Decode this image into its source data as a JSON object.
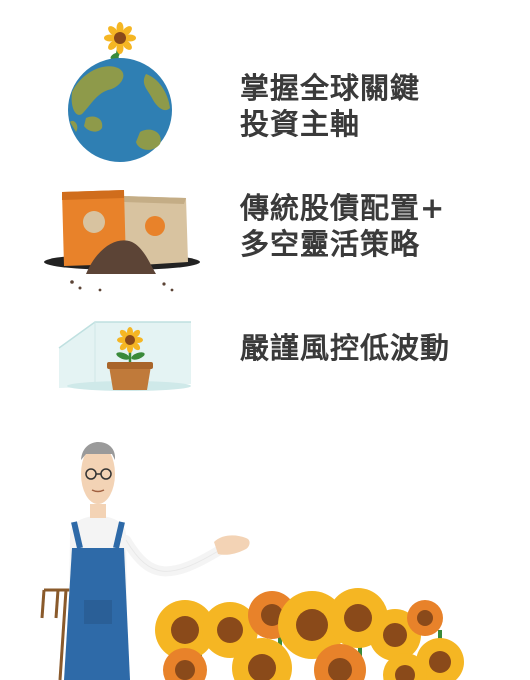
{
  "features": [
    {
      "lines": [
        "掌握全球關鍵",
        "投資主軸"
      ],
      "icon": "globe-with-sunflower-icon"
    },
    {
      "lines": [
        "傳統股債配置+",
        "多空靈活策略"
      ],
      "icon": "soil-bags-icon"
    },
    {
      "lines": [
        "嚴謹風控低波動"
      ],
      "icon": "greenhouse-flower-icon"
    }
  ],
  "colors": {
    "text": "#3a3a3a",
    "ocean": "#2f7fb3",
    "land": "#8e9a4a",
    "bag_orange": "#e8822a",
    "bag_beige": "#d8c3a0",
    "soil": "#5c4436",
    "sunflower_petal": "#f5b623",
    "sunflower_center": "#8a4a1a",
    "overalls": "#2e6aa8"
  }
}
